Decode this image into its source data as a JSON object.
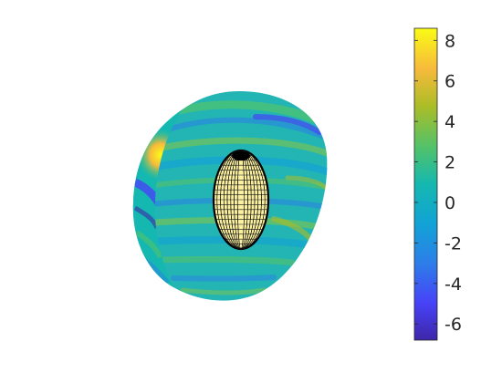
{
  "chart_data": {
    "type": "heatmap",
    "title": "",
    "xlabel": "",
    "ylabel": "",
    "surface": "3d-cutaway-ellipsoidal-shell-with-inner-wireframe-ellipsoid",
    "grid": false,
    "colormap": "parula",
    "colormap_colors": [
      "#3e26a8",
      "#4743f8",
      "#2c7fe8",
      "#12a2d6",
      "#14b8b0",
      "#52c269",
      "#abbd27",
      "#f7ba3c",
      "#f9fb15"
    ],
    "colorbar": {
      "placement": "right",
      "clim": [
        -6.8,
        8.6
      ],
      "ticks": [
        8,
        6,
        4,
        2,
        0,
        -2,
        -4,
        -6
      ],
      "tick_labels": [
        "8",
        "6",
        "4",
        "2",
        "0",
        "-2",
        "-4",
        "-6"
      ]
    }
  }
}
